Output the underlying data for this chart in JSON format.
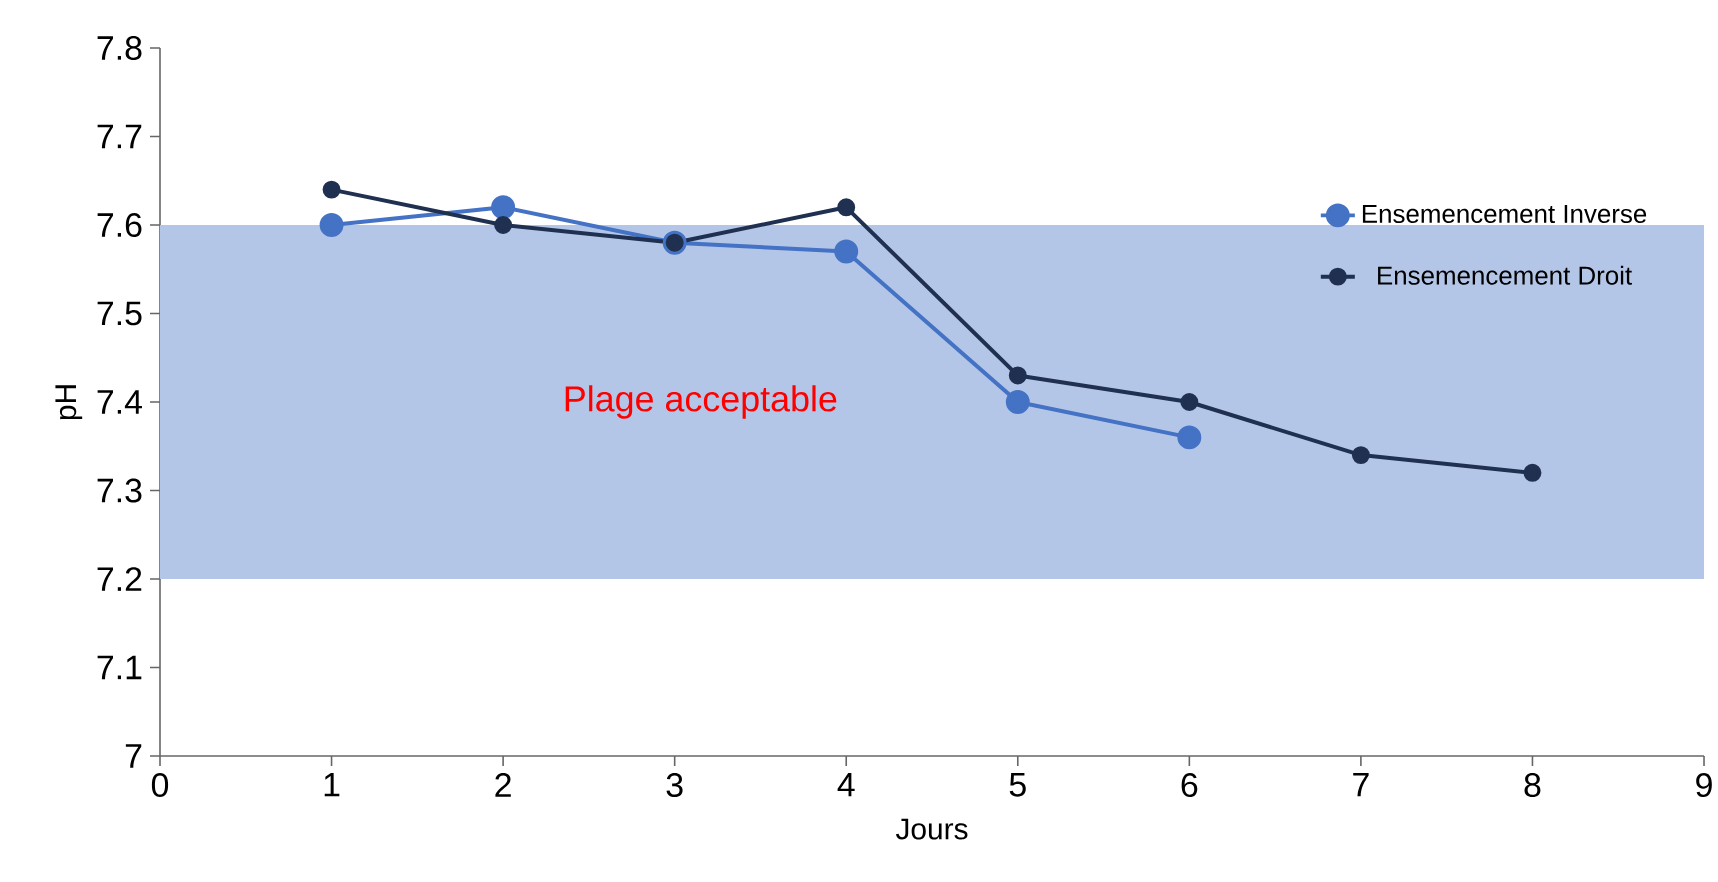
{
  "chart_data": {
    "type": "line",
    "xlabel": "Jours",
    "ylabel": "pH",
    "x": [
      1,
      2,
      3,
      4,
      5,
      6,
      7,
      8
    ],
    "series": [
      {
        "name": "Ensemencement Inverse",
        "color": "#4472c4",
        "values": [
          7.6,
          7.62,
          7.58,
          7.57,
          7.4,
          7.36,
          null,
          null
        ]
      },
      {
        "name": "Ensemencement Droit",
        "color": "#1f3050",
        "values": [
          7.64,
          7.6,
          7.58,
          7.62,
          7.43,
          7.4,
          7.34,
          7.32
        ]
      }
    ],
    "xlim": [
      0,
      9
    ],
    "xticks": [
      0,
      1,
      2,
      3,
      4,
      5,
      6,
      7,
      8,
      9
    ],
    "ylim": [
      7,
      7.8
    ],
    "yticks": [
      {
        "value": 7,
        "label": "7"
      },
      7.1,
      7.2,
      7.3,
      7.4,
      7.5,
      7.6,
      7.7,
      7.8
    ],
    "bands": [
      {
        "axis": "y",
        "from": 7.2,
        "to": 7.6,
        "label": "Plage acceptable",
        "color": "#b4c6e7"
      }
    ],
    "legend": "right",
    "marker": "circle",
    "line_style": "solid",
    "grid": false
  }
}
